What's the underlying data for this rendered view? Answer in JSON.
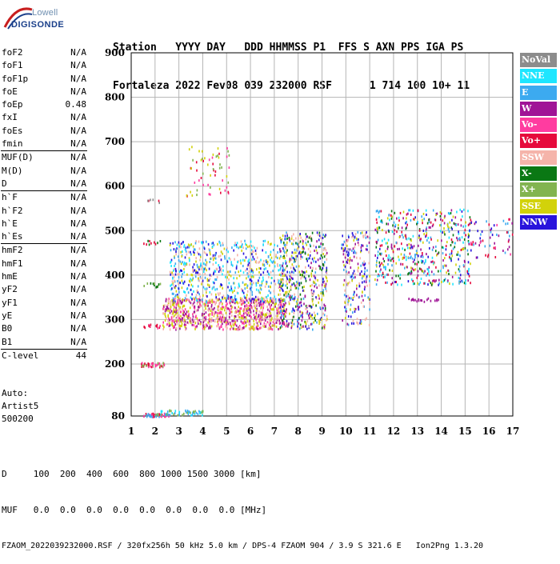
{
  "logo": {
    "maker": "Lowell",
    "brand": "DIGISONDE"
  },
  "header": {
    "line1": "Station   YYYY DAY   DDD HHMMSS P1  FFS S AXN PPS IGA PS",
    "line2": "Fortaleza 2022 Fev08 039 232000 RSF      1 714 100 10+ 11"
  },
  "params_group1": [
    {
      "k": "foF2",
      "v": "N/A"
    },
    {
      "k": "foF1",
      "v": "N/A"
    },
    {
      "k": "foF1p",
      "v": "N/A"
    },
    {
      "k": "foE",
      "v": "N/A"
    },
    {
      "k": "foEp",
      "v": "0.48"
    },
    {
      "k": "fxI",
      "v": "N/A"
    },
    {
      "k": "foEs",
      "v": "N/A"
    },
    {
      "k": "fmin",
      "v": "N/A"
    }
  ],
  "params_group2": [
    {
      "k": "MUF(D)",
      "v": "N/A"
    },
    {
      "k": "M(D)",
      "v": "N/A"
    },
    {
      "k": "D",
      "v": "N/A"
    }
  ],
  "params_group3": [
    {
      "k": "h`F",
      "v": "N/A"
    },
    {
      "k": "h`F2",
      "v": "N/A"
    },
    {
      "k": "h`E",
      "v": "N/A"
    },
    {
      "k": "h`Es",
      "v": "N/A"
    }
  ],
  "params_group4": [
    {
      "k": "hmF2",
      "v": "N/A"
    },
    {
      "k": "hmF1",
      "v": "N/A"
    },
    {
      "k": "hmE",
      "v": "N/A"
    },
    {
      "k": "yF2",
      "v": "N/A"
    },
    {
      "k": "yF1",
      "v": "N/A"
    },
    {
      "k": "yE",
      "v": "N/A"
    },
    {
      "k": "B0",
      "v": "N/A"
    },
    {
      "k": "B1",
      "v": "N/A"
    }
  ],
  "params_group5": [
    {
      "k": "C-level",
      "v": "44"
    }
  ],
  "auto": {
    "line1": "Auto:",
    "line2": "Artist5",
    "line3": "500200"
  },
  "footer": {
    "line1": "D     100  200  400  600  800 1000 1500 3000 [km]",
    "line2": "MUF   0.0  0.0  0.0  0.0  0.0  0.0  0.0  0.0 [MHz]",
    "line3": "FZAOM_2022039232000.RSF / 320fx256h 50 kHz 5.0 km / DPS-4 FZAOM 904 / 3.9 S 321.6 E   Ion2Png 1.3.20"
  },
  "legend": [
    {
      "label": "NoVal",
      "color": "#8c8c8c"
    },
    {
      "label": "NNE",
      "color": "#1ee6ff"
    },
    {
      "label": "E",
      "color": "#3caaf0"
    },
    {
      "label": "W",
      "color": "#a01496"
    },
    {
      "label": "Vo-",
      "color": "#ff3ca0"
    },
    {
      "label": "Vo+",
      "color": "#e60a3c"
    },
    {
      "label": "SSW",
      "color": "#f5b4aa"
    },
    {
      "label": "X-",
      "color": "#0a7814"
    },
    {
      "label": "X+",
      "color": "#82b450"
    },
    {
      "label": "SSE",
      "color": "#d2d20a"
    },
    {
      "label": "NNW",
      "color": "#2814dc"
    }
  ],
  "chart_data": {
    "type": "scatter",
    "xlim": [
      1,
      17
    ],
    "ylim": [
      80,
      900
    ],
    "xticks": [
      1,
      2,
      3,
      4,
      5,
      6,
      7,
      8,
      9,
      10,
      11,
      12,
      13,
      14,
      15,
      16,
      17
    ],
    "yticks": [
      80,
      200,
      300,
      400,
      500,
      600,
      700,
      800,
      900
    ],
    "grid": true,
    "legend_position": "right",
    "clusters": [
      {
        "fmin": 1.5,
        "fmax": 2.6,
        "hmin": 80,
        "hmax": 88,
        "colors": [
          "#e60a3c",
          "#ff3ca0",
          "#3caaf0"
        ],
        "n": 60
      },
      {
        "fmin": 2.0,
        "fmax": 4.0,
        "hmin": 84,
        "hmax": 96,
        "colors": [
          "#3caaf0",
          "#1ee6ff",
          "#82b450"
        ],
        "n": 60
      },
      {
        "fmin": 1.4,
        "fmax": 2.4,
        "hmin": 195,
        "hmax": 205,
        "colors": [
          "#e60a3c",
          "#ff3ca0",
          "#82b450"
        ],
        "n": 40
      },
      {
        "fmin": 1.5,
        "fmax": 2.2,
        "hmin": 283,
        "hmax": 292,
        "colors": [
          "#e60a3c",
          "#ff3ca0"
        ],
        "n": 14
      },
      {
        "fmin": 1.5,
        "fmax": 2.2,
        "hmin": 375,
        "hmax": 385,
        "colors": [
          "#82b450",
          "#0a7814"
        ],
        "n": 12
      },
      {
        "fmin": 1.5,
        "fmax": 2.2,
        "hmin": 470,
        "hmax": 480,
        "colors": [
          "#e60a3c",
          "#0a7814"
        ],
        "n": 10
      },
      {
        "fmin": 1.6,
        "fmax": 2.2,
        "hmin": 565,
        "hmax": 572,
        "colors": [
          "#e60a3c",
          "#8c8c8c"
        ],
        "n": 6
      },
      {
        "fmin": 3.3,
        "fmax": 5.2,
        "hmin": 580,
        "hmax": 700,
        "colors": [
          "#d2d20a",
          "#e60a3c",
          "#ff3ca0",
          "#82b450"
        ],
        "n": 60
      },
      {
        "fmin": 2.3,
        "fmax": 7.5,
        "hmin": 280,
        "hmax": 350,
        "colors": [
          "#f5b4aa",
          "#d2d20a",
          "#ff3ca0",
          "#a01496"
        ],
        "n": 900
      },
      {
        "fmin": 2.6,
        "fmax": 7.5,
        "hmin": 340,
        "hmax": 480,
        "colors": [
          "#3caaf0",
          "#1ee6ff",
          "#2814dc",
          "#d2d20a",
          "#f5b4aa"
        ],
        "n": 700
      },
      {
        "fmin": 7.2,
        "fmax": 9.2,
        "hmin": 280,
        "hmax": 500,
        "colors": [
          "#2814dc",
          "#d2d20a",
          "#a01496",
          "#3caaf0",
          "#0a7814",
          "#f5b4aa"
        ],
        "n": 500
      },
      {
        "fmin": 9.8,
        "fmax": 11.0,
        "hmin": 290,
        "hmax": 500,
        "colors": [
          "#d2d20a",
          "#f5b4aa",
          "#3caaf0",
          "#2814dc",
          "#a01496"
        ],
        "n": 220
      },
      {
        "fmin": 11.2,
        "fmax": 15.2,
        "hmin": 380,
        "hmax": 550,
        "colors": [
          "#0a7814",
          "#3caaf0",
          "#2814dc",
          "#a01496",
          "#1ee6ff",
          "#d2d20a",
          "#e60a3c"
        ],
        "n": 520
      },
      {
        "fmin": 12.6,
        "fmax": 13.9,
        "hmin": 342,
        "hmax": 350,
        "colors": [
          "#a01496"
        ],
        "n": 20
      },
      {
        "fmin": 15.2,
        "fmax": 17.0,
        "hmin": 440,
        "hmax": 530,
        "colors": [
          "#ff3ca0",
          "#a01496",
          "#3caaf0",
          "#2814dc",
          "#e60a3c"
        ],
        "n": 60
      }
    ]
  }
}
